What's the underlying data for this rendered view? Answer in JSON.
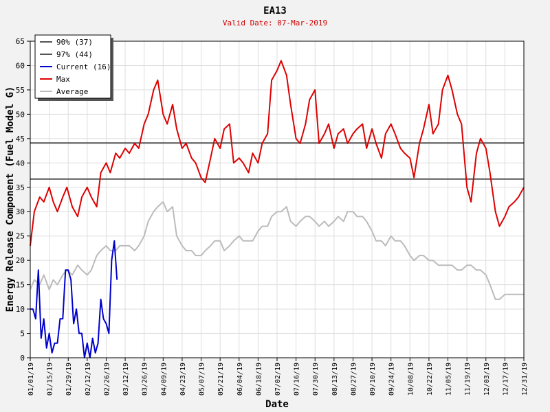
{
  "chart_data": {
    "type": "line",
    "title": "EA13",
    "subtitle": "Valid Date: 07-Mar-2019",
    "xlabel": "Date",
    "ylabel": "Energy Release Component (Fuel Model G)",
    "ylim": [
      0,
      65
    ],
    "xlim_days": [
      0,
      364
    ],
    "grid": true,
    "legend_position": "top-left",
    "yticks": [
      0,
      5,
      10,
      15,
      20,
      25,
      30,
      35,
      40,
      45,
      50,
      55,
      60,
      65
    ],
    "xtick_labels": [
      "01/01/19",
      "01/15/19",
      "01/29/19",
      "02/12/19",
      "02/26/19",
      "03/12/19",
      "03/26/19",
      "04/09/19",
      "04/23/19",
      "05/07/19",
      "05/21/19",
      "06/04/19",
      "06/18/19",
      "07/02/19",
      "07/16/19",
      "07/30/19",
      "08/13/19",
      "08/27/19",
      "09/10/19",
      "09/24/19",
      "10/08/19",
      "10/22/19",
      "11/05/19",
      "11/19/19",
      "12/03/19",
      "12/17/19",
      "12/31/19"
    ],
    "xtick_days": [
      0,
      14,
      28,
      42,
      56,
      70,
      84,
      98,
      112,
      126,
      140,
      154,
      168,
      182,
      196,
      210,
      224,
      238,
      252,
      266,
      280,
      294,
      308,
      322,
      336,
      350,
      364
    ],
    "reference_lines": [
      {
        "name": "90% (37)",
        "value": 36.7,
        "color": "#555555"
      },
      {
        "name": "97% (44)",
        "value": 44.1,
        "color": "#555555"
      }
    ],
    "legend": [
      {
        "label": "90% (37)",
        "color": "#555555"
      },
      {
        "label": "97% (44)",
        "color": "#555555"
      },
      {
        "label": "Current (16)",
        "color": "#0000cc"
      },
      {
        "label": "Max",
        "color": "#dd0000"
      },
      {
        "label": "Average",
        "color": "#bbbbbb"
      }
    ],
    "series": [
      {
        "name": "Max",
        "color": "#dd0000",
        "points": [
          [
            0,
            23
          ],
          [
            3,
            30
          ],
          [
            7,
            33
          ],
          [
            10,
            32
          ],
          [
            14,
            35
          ],
          [
            17,
            32
          ],
          [
            20,
            30
          ],
          [
            24,
            33
          ],
          [
            27,
            35
          ],
          [
            31,
            31
          ],
          [
            35,
            29
          ],
          [
            38,
            33
          ],
          [
            42,
            35
          ],
          [
            45,
            33
          ],
          [
            49,
            31
          ],
          [
            52,
            38
          ],
          [
            56,
            40
          ],
          [
            59,
            38
          ],
          [
            63,
            42
          ],
          [
            66,
            41
          ],
          [
            70,
            43
          ],
          [
            73,
            42
          ],
          [
            77,
            44
          ],
          [
            80,
            43
          ],
          [
            84,
            48
          ],
          [
            87,
            50
          ],
          [
            91,
            55
          ],
          [
            94,
            57
          ],
          [
            98,
            50
          ],
          [
            101,
            48
          ],
          [
            105,
            52
          ],
          [
            108,
            47
          ],
          [
            112,
            43
          ],
          [
            115,
            44
          ],
          [
            119,
            41
          ],
          [
            122,
            40
          ],
          [
            126,
            37
          ],
          [
            129,
            36
          ],
          [
            133,
            41
          ],
          [
            136,
            45
          ],
          [
            140,
            43
          ],
          [
            143,
            47
          ],
          [
            147,
            48
          ],
          [
            150,
            40
          ],
          [
            154,
            41
          ],
          [
            157,
            40
          ],
          [
            161,
            38
          ],
          [
            164,
            42
          ],
          [
            168,
            40
          ],
          [
            171,
            44
          ],
          [
            175,
            46
          ],
          [
            178,
            57
          ],
          [
            182,
            59
          ],
          [
            185,
            61
          ],
          [
            189,
            58
          ],
          [
            192,
            52
          ],
          [
            196,
            45
          ],
          [
            199,
            44
          ],
          [
            203,
            48
          ],
          [
            206,
            53
          ],
          [
            210,
            55
          ],
          [
            213,
            44
          ],
          [
            217,
            46
          ],
          [
            220,
            48
          ],
          [
            224,
            43
          ],
          [
            227,
            46
          ],
          [
            231,
            47
          ],
          [
            234,
            44
          ],
          [
            238,
            46
          ],
          [
            241,
            47
          ],
          [
            245,
            48
          ],
          [
            248,
            43
          ],
          [
            252,
            47
          ],
          [
            255,
            44
          ],
          [
            259,
            41
          ],
          [
            262,
            46
          ],
          [
            266,
            48
          ],
          [
            269,
            46
          ],
          [
            273,
            43
          ],
          [
            276,
            42
          ],
          [
            280,
            41
          ],
          [
            283,
            37
          ],
          [
            287,
            44
          ],
          [
            290,
            47
          ],
          [
            294,
            52
          ],
          [
            297,
            46
          ],
          [
            301,
            48
          ],
          [
            304,
            55
          ],
          [
            308,
            58
          ],
          [
            311,
            55
          ],
          [
            315,
            50
          ],
          [
            318,
            48
          ],
          [
            322,
            35
          ],
          [
            325,
            32
          ],
          [
            329,
            42
          ],
          [
            332,
            45
          ],
          [
            336,
            43
          ],
          [
            339,
            38
          ],
          [
            343,
            30
          ],
          [
            346,
            27
          ],
          [
            350,
            29
          ],
          [
            353,
            31
          ],
          [
            357,
            32
          ],
          [
            360,
            33
          ],
          [
            364,
            35
          ]
        ]
      },
      {
        "name": "Average",
        "color": "#bbbbbb",
        "points": [
          [
            0,
            14
          ],
          [
            3,
            16
          ],
          [
            7,
            15
          ],
          [
            10,
            17
          ],
          [
            14,
            14
          ],
          [
            17,
            16
          ],
          [
            20,
            15
          ],
          [
            24,
            17
          ],
          [
            27,
            18
          ],
          [
            31,
            17
          ],
          [
            35,
            19
          ],
          [
            38,
            18
          ],
          [
            42,
            17
          ],
          [
            45,
            18
          ],
          [
            49,
            21
          ],
          [
            52,
            22
          ],
          [
            56,
            23
          ],
          [
            59,
            22
          ],
          [
            63,
            22
          ],
          [
            66,
            23
          ],
          [
            70,
            23
          ],
          [
            73,
            23
          ],
          [
            77,
            22
          ],
          [
            80,
            23
          ],
          [
            84,
            25
          ],
          [
            87,
            28
          ],
          [
            91,
            30
          ],
          [
            94,
            31
          ],
          [
            98,
            32
          ],
          [
            101,
            30
          ],
          [
            105,
            31
          ],
          [
            108,
            25
          ],
          [
            112,
            23
          ],
          [
            115,
            22
          ],
          [
            119,
            22
          ],
          [
            122,
            21
          ],
          [
            126,
            21
          ],
          [
            129,
            22
          ],
          [
            133,
            23
          ],
          [
            136,
            24
          ],
          [
            140,
            24
          ],
          [
            143,
            22
          ],
          [
            147,
            23
          ],
          [
            150,
            24
          ],
          [
            154,
            25
          ],
          [
            157,
            24
          ],
          [
            161,
            24
          ],
          [
            164,
            24
          ],
          [
            168,
            26
          ],
          [
            171,
            27
          ],
          [
            175,
            27
          ],
          [
            178,
            29
          ],
          [
            182,
            30
          ],
          [
            185,
            30
          ],
          [
            189,
            31
          ],
          [
            192,
            28
          ],
          [
            196,
            27
          ],
          [
            199,
            28
          ],
          [
            203,
            29
          ],
          [
            206,
            29
          ],
          [
            210,
            28
          ],
          [
            213,
            27
          ],
          [
            217,
            28
          ],
          [
            220,
            27
          ],
          [
            224,
            28
          ],
          [
            227,
            29
          ],
          [
            231,
            28
          ],
          [
            234,
            30
          ],
          [
            238,
            30
          ],
          [
            241,
            29
          ],
          [
            245,
            29
          ],
          [
            248,
            28
          ],
          [
            252,
            26
          ],
          [
            255,
            24
          ],
          [
            259,
            24
          ],
          [
            262,
            23
          ],
          [
            266,
            25
          ],
          [
            269,
            24
          ],
          [
            273,
            24
          ],
          [
            276,
            23
          ],
          [
            280,
            21
          ],
          [
            283,
            20
          ],
          [
            287,
            21
          ],
          [
            290,
            21
          ],
          [
            294,
            20
          ],
          [
            297,
            20
          ],
          [
            301,
            19
          ],
          [
            304,
            19
          ],
          [
            308,
            19
          ],
          [
            311,
            19
          ],
          [
            315,
            18
          ],
          [
            318,
            18
          ],
          [
            322,
            19
          ],
          [
            325,
            19
          ],
          [
            329,
            18
          ],
          [
            332,
            18
          ],
          [
            336,
            17
          ],
          [
            339,
            15
          ],
          [
            343,
            12
          ],
          [
            346,
            12
          ],
          [
            350,
            13
          ],
          [
            353,
            13
          ],
          [
            357,
            13
          ],
          [
            360,
            13
          ],
          [
            364,
            13
          ]
        ]
      },
      {
        "name": "Current (16)",
        "color": "#0000cc",
        "points": [
          [
            0,
            10
          ],
          [
            2,
            10
          ],
          [
            4,
            8
          ],
          [
            6,
            18
          ],
          [
            8,
            4
          ],
          [
            10,
            8
          ],
          [
            12,
            2
          ],
          [
            14,
            5
          ],
          [
            16,
            1
          ],
          [
            18,
            3
          ],
          [
            20,
            3
          ],
          [
            22,
            8
          ],
          [
            24,
            8
          ],
          [
            26,
            18
          ],
          [
            28,
            18
          ],
          [
            30,
            16
          ],
          [
            32,
            7
          ],
          [
            34,
            10
          ],
          [
            36,
            5
          ],
          [
            38,
            5
          ],
          [
            40,
            0
          ],
          [
            42,
            3
          ],
          [
            44,
            0
          ],
          [
            46,
            4
          ],
          [
            48,
            1
          ],
          [
            50,
            3
          ],
          [
            52,
            12
          ],
          [
            54,
            8
          ],
          [
            56,
            7
          ],
          [
            58,
            5
          ],
          [
            60,
            20
          ],
          [
            62,
            24
          ],
          [
            64,
            16
          ]
        ]
      }
    ]
  }
}
